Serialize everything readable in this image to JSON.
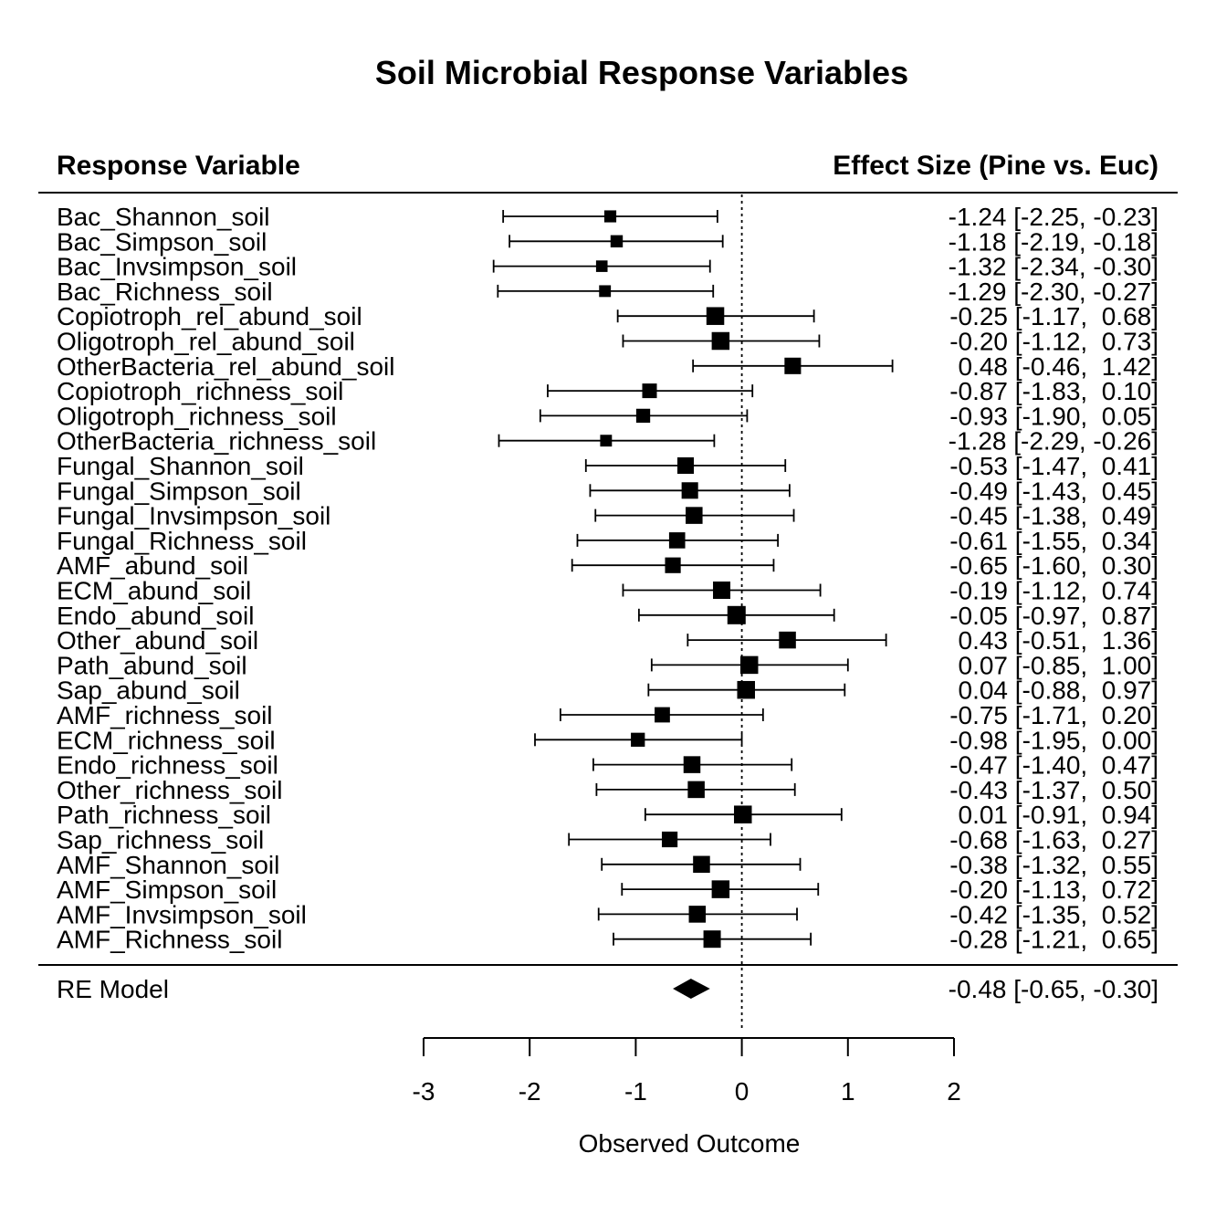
{
  "chart_data": {
    "type": "forest",
    "title": "Soil Microbial Response Variables",
    "left_header": "Response Variable",
    "right_header": "Effect Size (Pine vs. Euc)",
    "xlabel": "Observed Outcome",
    "xlim": [
      -3,
      2
    ],
    "xticks": [
      "-3",
      "-2",
      "-1",
      "0",
      "1",
      "2"
    ],
    "reference_line": 0,
    "studies": [
      {
        "label": "Bac_Shannon_soil",
        "est": -1.24,
        "lo": -2.25,
        "hi": -0.23,
        "text": "-1.24 [-2.25, -0.23]"
      },
      {
        "label": "Bac_Simpson_soil",
        "est": -1.18,
        "lo": -2.19,
        "hi": -0.18,
        "text": "-1.18 [-2.19, -0.18]"
      },
      {
        "label": "Bac_Invsimpson_soil",
        "est": -1.32,
        "lo": -2.34,
        "hi": -0.3,
        "text": "-1.32 [-2.34, -0.30]"
      },
      {
        "label": "Bac_Richness_soil",
        "est": -1.29,
        "lo": -2.3,
        "hi": -0.27,
        "text": "-1.29 [-2.30, -0.27]"
      },
      {
        "label": "Copiotroph_rel_abund_soil",
        "est": -0.25,
        "lo": -1.17,
        "hi": 0.68,
        "text": "-0.25 [-1.17,  0.68]"
      },
      {
        "label": "Oligotroph_rel_abund_soil",
        "est": -0.2,
        "lo": -1.12,
        "hi": 0.73,
        "text": "-0.20 [-1.12,  0.73]"
      },
      {
        "label": "OtherBacteria_rel_abund_soil",
        "est": 0.48,
        "lo": -0.46,
        "hi": 1.42,
        "text": " 0.48 [-0.46,  1.42]"
      },
      {
        "label": "Copiotroph_richness_soil",
        "est": -0.87,
        "lo": -1.83,
        "hi": 0.1,
        "text": "-0.87 [-1.83,  0.10]"
      },
      {
        "label": "Oligotroph_richness_soil",
        "est": -0.93,
        "lo": -1.9,
        "hi": 0.05,
        "text": "-0.93 [-1.90,  0.05]"
      },
      {
        "label": "OtherBacteria_richness_soil",
        "est": -1.28,
        "lo": -2.29,
        "hi": -0.26,
        "text": "-1.28 [-2.29, -0.26]"
      },
      {
        "label": "Fungal_Shannon_soil",
        "est": -0.53,
        "lo": -1.47,
        "hi": 0.41,
        "text": "-0.53 [-1.47,  0.41]"
      },
      {
        "label": "Fungal_Simpson_soil",
        "est": -0.49,
        "lo": -1.43,
        "hi": 0.45,
        "text": "-0.49 [-1.43,  0.45]"
      },
      {
        "label": "Fungal_Invsimpson_soil",
        "est": -0.45,
        "lo": -1.38,
        "hi": 0.49,
        "text": "-0.45 [-1.38,  0.49]"
      },
      {
        "label": "Fungal_Richness_soil",
        "est": -0.61,
        "lo": -1.55,
        "hi": 0.34,
        "text": "-0.61 [-1.55,  0.34]"
      },
      {
        "label": "AMF_abund_soil",
        "est": -0.65,
        "lo": -1.6,
        "hi": 0.3,
        "text": "-0.65 [-1.60,  0.30]"
      },
      {
        "label": "ECM_abund_soil",
        "est": -0.19,
        "lo": -1.12,
        "hi": 0.74,
        "text": "-0.19 [-1.12,  0.74]"
      },
      {
        "label": "Endo_abund_soil",
        "est": -0.05,
        "lo": -0.97,
        "hi": 0.87,
        "text": "-0.05 [-0.97,  0.87]"
      },
      {
        "label": "Other_abund_soil",
        "est": 0.43,
        "lo": -0.51,
        "hi": 1.36,
        "text": " 0.43 [-0.51,  1.36]"
      },
      {
        "label": "Path_abund_soil",
        "est": 0.07,
        "lo": -0.85,
        "hi": 1.0,
        "text": " 0.07 [-0.85,  1.00]"
      },
      {
        "label": "Sap_abund_soil",
        "est": 0.04,
        "lo": -0.88,
        "hi": 0.97,
        "text": " 0.04 [-0.88,  0.97]"
      },
      {
        "label": "AMF_richness_soil",
        "est": -0.75,
        "lo": -1.71,
        "hi": 0.2,
        "text": "-0.75 [-1.71,  0.20]"
      },
      {
        "label": "ECM_richness_soil",
        "est": -0.98,
        "lo": -1.95,
        "hi": 0.0,
        "text": "-0.98 [-1.95,  0.00]"
      },
      {
        "label": "Endo_richness_soil",
        "est": -0.47,
        "lo": -1.4,
        "hi": 0.47,
        "text": "-0.47 [-1.40,  0.47]"
      },
      {
        "label": "Other_richness_soil",
        "est": -0.43,
        "lo": -1.37,
        "hi": 0.5,
        "text": "-0.43 [-1.37,  0.50]"
      },
      {
        "label": "Path_richness_soil",
        "est": 0.01,
        "lo": -0.91,
        "hi": 0.94,
        "text": " 0.01 [-0.91,  0.94]"
      },
      {
        "label": "Sap_richness_soil",
        "est": -0.68,
        "lo": -1.63,
        "hi": 0.27,
        "text": "-0.68 [-1.63,  0.27]"
      },
      {
        "label": "AMF_Shannon_soil",
        "est": -0.38,
        "lo": -1.32,
        "hi": 0.55,
        "text": "-0.38 [-1.32,  0.55]"
      },
      {
        "label": "AMF_Simpson_soil",
        "est": -0.2,
        "lo": -1.13,
        "hi": 0.72,
        "text": "-0.20 [-1.13,  0.72]"
      },
      {
        "label": "AMF_Invsimpson_soil",
        "est": -0.42,
        "lo": -1.35,
        "hi": 0.52,
        "text": "-0.42 [-1.35,  0.52]"
      },
      {
        "label": "AMF_Richness_soil",
        "est": -0.28,
        "lo": -1.21,
        "hi": 0.65,
        "text": "-0.28 [-1.21,  0.65]"
      }
    ],
    "summary": {
      "label": "RE Model",
      "est": -0.48,
      "lo": -0.65,
      "hi": -0.3,
      "text": "-0.48 [-0.65, -0.30]"
    }
  }
}
